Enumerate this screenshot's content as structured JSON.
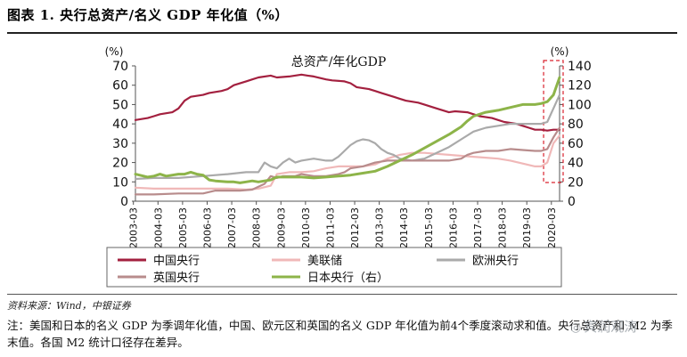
{
  "page_title": "图表 1. 央行总资产/名义 GDP 年化值（%）",
  "source": "资料来源：Wind，中银证券",
  "note": "注：美国和日本的名义 GDP 为季调年化值，中国、欧元区和英国的名义 GDP 年化值为前4个季度滚动求和值。央行总资产和 M2 为季末值。各国 M2 统计口径存在差异。",
  "watermark": "宾润观涛",
  "chart_data": {
    "type": "line",
    "title": "总资产/年化GDP",
    "left_axis": {
      "unit_label": "(%)",
      "ylim": [
        0,
        70
      ],
      "ticks": [
        0,
        10,
        20,
        30,
        40,
        50,
        60,
        70
      ]
    },
    "right_axis": {
      "unit_label": "(%)",
      "ylim": [
        0,
        140
      ],
      "ticks": [
        0,
        20,
        40,
        60,
        80,
        100,
        120,
        140
      ]
    },
    "x_range": [
      2003.25,
      2020.5
    ],
    "x_ticks": [
      "2003-03",
      "2004-03",
      "2005-03",
      "2006-03",
      "2007-03",
      "2008-03",
      "2009-03",
      "2010-03",
      "2011-03",
      "2012-03",
      "2013-03",
      "2014-03",
      "2015-03",
      "2016-03",
      "2017-03",
      "2018-03",
      "2019-03",
      "2020-03"
    ],
    "highlight_region": [
      2019.85,
      2020.5
    ],
    "legend": [
      "中国央行",
      "美联储",
      "欧洲央行",
      "英国央行",
      "日本央行（右）"
    ],
    "series": [
      {
        "name": "中国央行",
        "axis": "left",
        "color": "#a3203f",
        "points": [
          [
            2003.25,
            42
          ],
          [
            2003.75,
            43
          ],
          [
            2004.0,
            44
          ],
          [
            2004.25,
            45
          ],
          [
            2004.75,
            46
          ],
          [
            2005.0,
            48
          ],
          [
            2005.25,
            52
          ],
          [
            2005.5,
            54
          ],
          [
            2006.0,
            55
          ],
          [
            2006.25,
            56
          ],
          [
            2006.75,
            57
          ],
          [
            2007.0,
            58
          ],
          [
            2007.25,
            60
          ],
          [
            2007.75,
            62
          ],
          [
            2008.0,
            63
          ],
          [
            2008.25,
            64
          ],
          [
            2008.75,
            65
          ],
          [
            2009.0,
            64
          ],
          [
            2009.5,
            64.5
          ],
          [
            2010.0,
            65.5
          ],
          [
            2010.25,
            65
          ],
          [
            2010.5,
            64.5
          ],
          [
            2011.0,
            63
          ],
          [
            2011.25,
            62.5
          ],
          [
            2011.75,
            62
          ],
          [
            2012.0,
            61
          ],
          [
            2012.25,
            59
          ],
          [
            2012.75,
            58
          ],
          [
            2013.0,
            57
          ],
          [
            2013.25,
            56
          ],
          [
            2013.75,
            54
          ],
          [
            2014.0,
            53
          ],
          [
            2014.25,
            52
          ],
          [
            2014.75,
            51
          ],
          [
            2015.0,
            50
          ],
          [
            2015.5,
            48
          ],
          [
            2015.75,
            47
          ],
          [
            2016.0,
            46
          ],
          [
            2016.25,
            46.5
          ],
          [
            2016.75,
            46
          ],
          [
            2017.0,
            45
          ],
          [
            2017.25,
            44
          ],
          [
            2017.75,
            43
          ],
          [
            2018.0,
            42
          ],
          [
            2018.25,
            41
          ],
          [
            2018.75,
            40
          ],
          [
            2019.0,
            39
          ],
          [
            2019.25,
            38
          ],
          [
            2019.5,
            37
          ],
          [
            2019.75,
            37
          ],
          [
            2020.0,
            36.5
          ],
          [
            2020.25,
            37
          ],
          [
            2020.5,
            37
          ]
        ]
      },
      {
        "name": "美联储",
        "axis": "left",
        "color": "#f0b8b8",
        "points": [
          [
            2003.25,
            7
          ],
          [
            2004.0,
            6.5
          ],
          [
            2005.0,
            6.5
          ],
          [
            2006.0,
            6.5
          ],
          [
            2007.0,
            6.5
          ],
          [
            2007.75,
            6
          ],
          [
            2008.25,
            6.5
          ],
          [
            2008.75,
            8
          ],
          [
            2009.0,
            14
          ],
          [
            2009.5,
            15
          ],
          [
            2010.0,
            15
          ],
          [
            2010.5,
            15.5
          ],
          [
            2011.0,
            17
          ],
          [
            2011.5,
            18
          ],
          [
            2012.0,
            18
          ],
          [
            2012.5,
            18
          ],
          [
            2013.0,
            19
          ],
          [
            2013.5,
            22
          ],
          [
            2014.0,
            24
          ],
          [
            2014.5,
            25
          ],
          [
            2015.0,
            25
          ],
          [
            2015.5,
            24.5
          ],
          [
            2016.0,
            24
          ],
          [
            2016.5,
            23.5
          ],
          [
            2017.0,
            23
          ],
          [
            2017.5,
            22.5
          ],
          [
            2018.0,
            22
          ],
          [
            2018.5,
            21
          ],
          [
            2019.0,
            19.5
          ],
          [
            2019.5,
            18
          ],
          [
            2019.75,
            18
          ],
          [
            2020.0,
            20
          ],
          [
            2020.25,
            30
          ],
          [
            2020.5,
            34
          ]
        ]
      },
      {
        "name": "欧洲央行",
        "axis": "left",
        "color": "#aaaaaa",
        "points": [
          [
            2003.25,
            11.5
          ],
          [
            2004.0,
            12
          ],
          [
            2005.0,
            12
          ],
          [
            2006.0,
            13
          ],
          [
            2007.0,
            14
          ],
          [
            2007.75,
            15
          ],
          [
            2008.25,
            15
          ],
          [
            2008.5,
            20
          ],
          [
            2008.75,
            18
          ],
          [
            2009.0,
            17
          ],
          [
            2009.25,
            20
          ],
          [
            2009.5,
            22
          ],
          [
            2009.75,
            20
          ],
          [
            2010.0,
            21
          ],
          [
            2010.5,
            22
          ],
          [
            2011.0,
            21
          ],
          [
            2011.25,
            21
          ],
          [
            2011.5,
            23
          ],
          [
            2011.75,
            26
          ],
          [
            2012.0,
            29
          ],
          [
            2012.25,
            31
          ],
          [
            2012.5,
            32
          ],
          [
            2012.75,
            31.5
          ],
          [
            2013.0,
            30
          ],
          [
            2013.25,
            27
          ],
          [
            2013.5,
            25
          ],
          [
            2013.75,
            24
          ],
          [
            2014.0,
            22
          ],
          [
            2014.5,
            21
          ],
          [
            2015.0,
            22
          ],
          [
            2015.5,
            25
          ],
          [
            2016.0,
            28
          ],
          [
            2016.5,
            32
          ],
          [
            2017.0,
            36
          ],
          [
            2017.5,
            38
          ],
          [
            2018.0,
            39
          ],
          [
            2018.5,
            40
          ],
          [
            2019.0,
            40
          ],
          [
            2019.5,
            40
          ],
          [
            2019.75,
            40
          ],
          [
            2020.0,
            41
          ],
          [
            2020.25,
            48
          ],
          [
            2020.5,
            55
          ]
        ]
      },
      {
        "name": "英国央行",
        "axis": "left",
        "color": "#b88c8c",
        "points": [
          [
            2003.25,
            3.5
          ],
          [
            2004.0,
            3.5
          ],
          [
            2005.0,
            4
          ],
          [
            2006.0,
            4
          ],
          [
            2006.5,
            5.5
          ],
          [
            2007.0,
            5.5
          ],
          [
            2007.5,
            5.5
          ],
          [
            2008.0,
            6
          ],
          [
            2008.5,
            9
          ],
          [
            2008.75,
            13
          ],
          [
            2009.0,
            12
          ],
          [
            2009.25,
            13
          ],
          [
            2009.75,
            13
          ],
          [
            2010.0,
            14
          ],
          [
            2010.5,
            13
          ],
          [
            2011.0,
            13
          ],
          [
            2011.5,
            14
          ],
          [
            2011.75,
            15
          ],
          [
            2012.0,
            17
          ],
          [
            2012.5,
            18
          ],
          [
            2013.0,
            20
          ],
          [
            2013.5,
            21
          ],
          [
            2014.0,
            21
          ],
          [
            2014.5,
            21
          ],
          [
            2015.0,
            21
          ],
          [
            2015.5,
            21
          ],
          [
            2016.0,
            21
          ],
          [
            2016.5,
            22
          ],
          [
            2016.75,
            24
          ],
          [
            2017.0,
            25
          ],
          [
            2017.5,
            26
          ],
          [
            2018.0,
            26
          ],
          [
            2018.5,
            27
          ],
          [
            2019.0,
            26.5
          ],
          [
            2019.5,
            26
          ],
          [
            2019.75,
            26
          ],
          [
            2020.0,
            27
          ],
          [
            2020.25,
            33
          ],
          [
            2020.5,
            38
          ]
        ]
      },
      {
        "name": "日本央行（右）",
        "axis": "right",
        "color": "#8db449",
        "points": [
          [
            2003.25,
            28
          ],
          [
            2003.75,
            25
          ],
          [
            2004.0,
            26
          ],
          [
            2004.25,
            28
          ],
          [
            2004.5,
            26
          ],
          [
            2004.75,
            27
          ],
          [
            2005.0,
            28
          ],
          [
            2005.25,
            28
          ],
          [
            2005.5,
            30
          ],
          [
            2005.75,
            28
          ],
          [
            2006.0,
            27
          ],
          [
            2006.25,
            22
          ],
          [
            2006.5,
            21
          ],
          [
            2007.0,
            20
          ],
          [
            2007.25,
            20
          ],
          [
            2007.5,
            19
          ],
          [
            2007.75,
            20
          ],
          [
            2008.0,
            21
          ],
          [
            2008.25,
            20
          ],
          [
            2008.5,
            21
          ],
          [
            2008.75,
            22
          ],
          [
            2009.0,
            25
          ],
          [
            2009.5,
            25
          ],
          [
            2010.0,
            25
          ],
          [
            2010.5,
            24
          ],
          [
            2011.0,
            25
          ],
          [
            2011.5,
            26
          ],
          [
            2012.0,
            27
          ],
          [
            2012.5,
            29
          ],
          [
            2013.0,
            31
          ],
          [
            2013.5,
            36
          ],
          [
            2014.0,
            42
          ],
          [
            2014.5,
            48
          ],
          [
            2015.0,
            55
          ],
          [
            2015.5,
            62
          ],
          [
            2016.0,
            69
          ],
          [
            2016.5,
            77
          ],
          [
            2016.75,
            83
          ],
          [
            2017.0,
            88
          ],
          [
            2017.5,
            92
          ],
          [
            2018.0,
            94
          ],
          [
            2018.5,
            97
          ],
          [
            2019.0,
            100
          ],
          [
            2019.5,
            100
          ],
          [
            2019.75,
            101
          ],
          [
            2020.0,
            103
          ],
          [
            2020.25,
            110
          ],
          [
            2020.5,
            128
          ]
        ]
      }
    ]
  }
}
